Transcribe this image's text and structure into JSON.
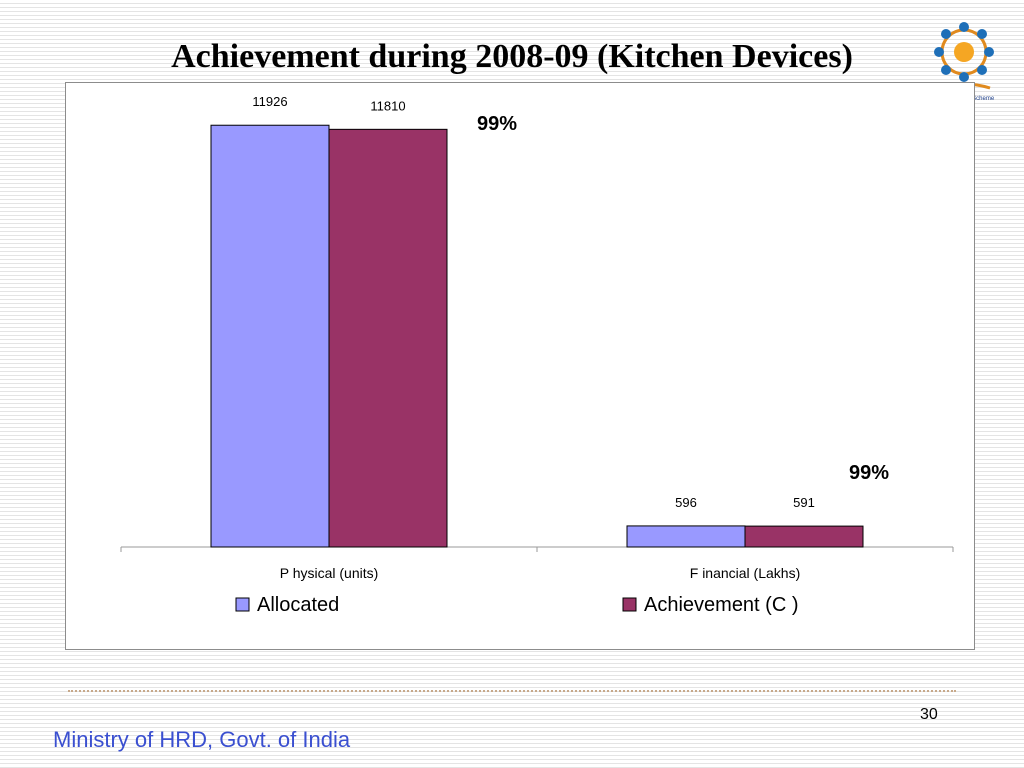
{
  "slide": {
    "title": "Achievement during 2008-09 (Kitchen Devices)",
    "page_number": "30",
    "footer": "Ministry of HRD, Govt. of India",
    "logo_icon": "mid-day-meal-logo-icon",
    "logo_caption": "Mid Day Meal Scheme"
  },
  "annotations": {
    "physical_pct": "99%",
    "financial_pct": "99%"
  },
  "chart_data": {
    "type": "bar",
    "categories": [
      "P hysical (units)",
      "F inancial (Lakhs)"
    ],
    "series": [
      {
        "name": "Allocated",
        "values": [
          11926,
          596
        ],
        "color": "#9999ff"
      },
      {
        "name": "Achievement (C )",
        "values": [
          11810,
          591
        ],
        "color": "#993366"
      }
    ],
    "ylim": [
      0,
      12300
    ],
    "grid": false,
    "legend": "bottom",
    "title": "",
    "xlabel": "",
    "ylabel": ""
  }
}
